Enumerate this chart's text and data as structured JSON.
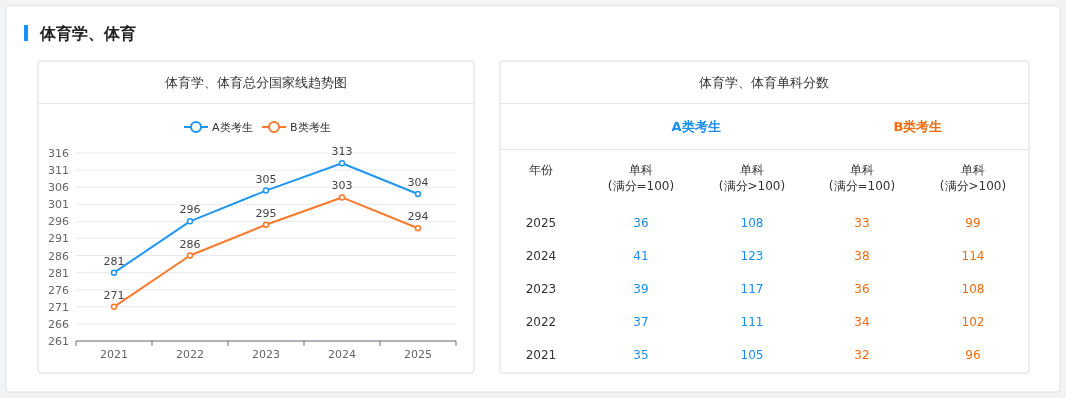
{
  "chart_data": [
    {
      "type": "other",
      "title": "体育学、体育",
      "colors": [
        "#1890ff"
      ]
    },
    {
      "type": "line",
      "title": "体育学、体育总分国家线趋势图",
      "categories": [
        "2021",
        "2022",
        "2023",
        "2024",
        "2025"
      ],
      "series": [
        {
          "name": "A类考生",
          "color": "#2196f3",
          "values": [
            281,
            296,
            305,
            313,
            304
          ]
        },
        {
          "name": "B类考生",
          "color": "#fa7a2c",
          "values": [
            271,
            286,
            295,
            303,
            294
          ]
        }
      ],
      "ylim": [
        261,
        316
      ],
      "yticks": [
        261,
        266,
        271,
        276,
        281,
        286,
        291,
        296,
        301,
        306,
        311,
        316
      ],
      "grid": "y",
      "legend": "top",
      "marker": "circle",
      "line_style": "solid",
      "data_labels": true
    },
    {
      "type": "heatmap",
      "title": "体育学、体育单科分数",
      "colors": [
        "#1a8cf0",
        "#f26b0f"
      ],
      "data_labels": true,
      "annotations": [
        "A类考生",
        "B类考生",
        "年份"
      ],
      "categories": [
        "单科\n(满分=100)",
        "单科\n(满分>100)",
        "单科\n(满分=100)",
        "单科\n(满分>100)"
      ],
      "y_categories": [
        "2025",
        "2024",
        "2023",
        "2022",
        "2021"
      ],
      "cells": [
        [
          36,
          108,
          33,
          99
        ],
        [
          41,
          123,
          38,
          114
        ],
        [
          39,
          117,
          36,
          108
        ],
        [
          37,
          111,
          34,
          102
        ],
        [
          35,
          105,
          32,
          96
        ]
      ]
    }
  ]
}
